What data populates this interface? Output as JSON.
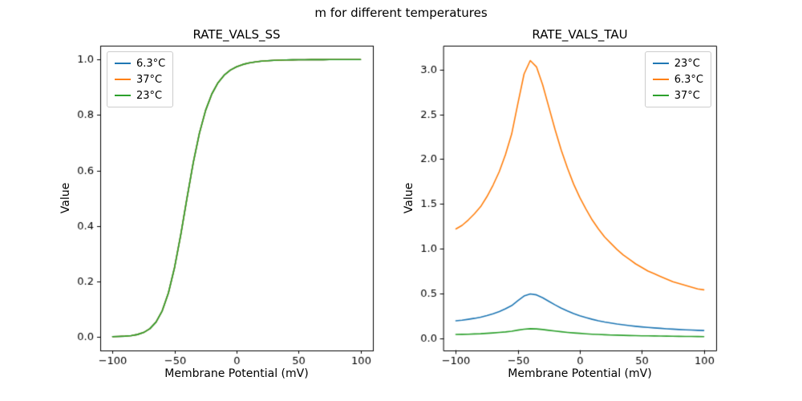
{
  "figure_title": "m for different temperatures",
  "chart_data": [
    {
      "type": "line",
      "title": "RATE_VALS_SS",
      "xlabel": "Membrane Potential (mV)",
      "ylabel": "Value",
      "legend_position": "upper left",
      "grid": false,
      "xlim": [
        -110,
        110
      ],
      "ylim": [
        -0.0495,
        1.05
      ],
      "xticks": [
        -100,
        -50,
        0,
        50,
        100
      ],
      "xtick_labels": [
        "−100",
        "−50",
        "0",
        "50",
        "100"
      ],
      "yticks": [
        0.0,
        0.2,
        0.4,
        0.6,
        0.8,
        1.0
      ],
      "ytick_labels": [
        "0.0",
        "0.2",
        "0.4",
        "0.6",
        "0.8",
        "1.0"
      ],
      "x": [
        -100,
        -95,
        -90,
        -85,
        -80,
        -75,
        -70,
        -65,
        -60,
        -55,
        -50,
        -45,
        -40,
        -35,
        -30,
        -25,
        -20,
        -15,
        -10,
        -5,
        0,
        5,
        10,
        15,
        20,
        25,
        30,
        35,
        40,
        45,
        50,
        55,
        60,
        65,
        70,
        75,
        80,
        85,
        90,
        95,
        100
      ],
      "series": [
        {
          "name": "6.3°C",
          "color": "#1f77b4",
          "values": [
            0.0005,
            0.0011,
            0.0021,
            0.0041,
            0.008,
            0.0154,
            0.0289,
            0.0529,
            0.0936,
            0.1581,
            0.2508,
            0.3692,
            0.5007,
            0.6271,
            0.7343,
            0.8167,
            0.8757,
            0.9163,
            0.9437,
            0.962,
            0.9742,
            0.9823,
            0.9878,
            0.9916,
            0.9941,
            0.9959,
            0.9971,
            0.9979,
            0.9985,
            0.999,
            0.9993,
            0.9995,
            0.9996,
            0.9997,
            0.9998,
            0.9999,
            0.9999,
            0.9999,
            0.9999,
            1.0,
            1.0
          ]
        },
        {
          "name": "37°C",
          "color": "#ff7f0e",
          "values": [
            0.0005,
            0.0011,
            0.0021,
            0.0041,
            0.008,
            0.0154,
            0.0289,
            0.0529,
            0.0936,
            0.1581,
            0.2508,
            0.3692,
            0.5007,
            0.6271,
            0.7343,
            0.8167,
            0.8757,
            0.9163,
            0.9437,
            0.962,
            0.9742,
            0.9823,
            0.9878,
            0.9916,
            0.9941,
            0.9959,
            0.9971,
            0.9979,
            0.9985,
            0.999,
            0.9993,
            0.9995,
            0.9996,
            0.9997,
            0.9998,
            0.9999,
            0.9999,
            0.9999,
            0.9999,
            1.0,
            1.0
          ]
        },
        {
          "name": "23°C",
          "color": "#2ca02c",
          "values": [
            0.0005,
            0.0011,
            0.0021,
            0.0041,
            0.008,
            0.0154,
            0.0289,
            0.0529,
            0.0936,
            0.1581,
            0.2508,
            0.3692,
            0.5007,
            0.6271,
            0.7343,
            0.8167,
            0.8757,
            0.9163,
            0.9437,
            0.962,
            0.9742,
            0.9823,
            0.9878,
            0.9916,
            0.9941,
            0.9959,
            0.9971,
            0.9979,
            0.9985,
            0.999,
            0.9993,
            0.9995,
            0.9996,
            0.9997,
            0.9998,
            0.9999,
            0.9999,
            0.9999,
            0.9999,
            1.0,
            1.0
          ]
        }
      ]
    },
    {
      "type": "line",
      "title": "RATE_VALS_TAU",
      "xlabel": "Membrane Potential (mV)",
      "ylabel": "Value",
      "legend_position": "upper right",
      "grid": false,
      "xlim": [
        -110,
        110
      ],
      "ylim": [
        -0.137,
        3.266
      ],
      "xticks": [
        -100,
        -50,
        0,
        50,
        100
      ],
      "xtick_labels": [
        "−100",
        "−50",
        "0",
        "50",
        "100"
      ],
      "yticks": [
        0.0,
        0.5,
        1.0,
        1.5,
        2.0,
        2.5,
        3.0
      ],
      "ytick_labels": [
        "0.0",
        "0.5",
        "1.0",
        "1.5",
        "2.0",
        "2.5",
        "3.0"
      ],
      "x": [
        -100,
        -95,
        -90,
        -85,
        -80,
        -75,
        -70,
        -65,
        -60,
        -55,
        -50,
        -45,
        -40,
        -35,
        -30,
        -25,
        -20,
        -15,
        -10,
        -5,
        0,
        5,
        10,
        15,
        20,
        25,
        30,
        35,
        40,
        45,
        50,
        55,
        60,
        65,
        70,
        75,
        80,
        85,
        90,
        95,
        100
      ],
      "series": [
        {
          "name": "23°C",
          "color": "#1f77b4",
          "values": [
            0.195,
            0.201,
            0.211,
            0.222,
            0.235,
            0.252,
            0.273,
            0.297,
            0.328,
            0.364,
            0.419,
            0.471,
            0.495,
            0.484,
            0.452,
            0.412,
            0.372,
            0.336,
            0.304,
            0.275,
            0.251,
            0.23,
            0.211,
            0.195,
            0.181,
            0.169,
            0.158,
            0.149,
            0.141,
            0.133,
            0.126,
            0.12,
            0.115,
            0.11,
            0.105,
            0.101,
            0.097,
            0.094,
            0.091,
            0.088,
            0.086
          ]
        },
        {
          "name": "6.3°C",
          "color": "#ff7f0e",
          "values": [
            1.22,
            1.26,
            1.32,
            1.39,
            1.47,
            1.58,
            1.71,
            1.86,
            2.05,
            2.28,
            2.62,
            2.95,
            3.1,
            3.03,
            2.83,
            2.58,
            2.33,
            2.1,
            1.9,
            1.72,
            1.57,
            1.44,
            1.32,
            1.22,
            1.13,
            1.06,
            0.99,
            0.93,
            0.88,
            0.83,
            0.79,
            0.75,
            0.72,
            0.69,
            0.66,
            0.63,
            0.61,
            0.59,
            0.57,
            0.55,
            0.54
          ]
        },
        {
          "name": "37°C",
          "color": "#2ca02c",
          "values": [
            0.042,
            0.043,
            0.045,
            0.048,
            0.05,
            0.054,
            0.059,
            0.064,
            0.07,
            0.078,
            0.09,
            0.101,
            0.106,
            0.104,
            0.097,
            0.088,
            0.08,
            0.072,
            0.065,
            0.059,
            0.054,
            0.049,
            0.045,
            0.042,
            0.039,
            0.036,
            0.034,
            0.032,
            0.03,
            0.029,
            0.027,
            0.026,
            0.025,
            0.024,
            0.023,
            0.022,
            0.021,
            0.02,
            0.02,
            0.019,
            0.018
          ]
        }
      ]
    }
  ]
}
